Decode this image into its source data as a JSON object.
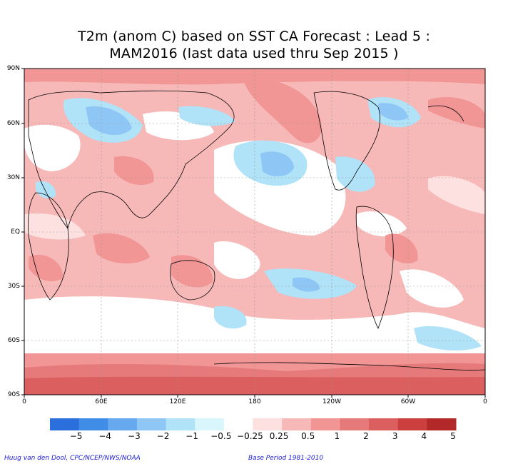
{
  "title_line1": "T2m (anom C) based on SST CA Forecast : Lead 5 :",
  "title_line2": "MAM2016 (last data used thru Sep 2015 )",
  "lat_labels": [
    "90N",
    "60N",
    "30N",
    "EQ",
    "30S",
    "60S",
    "90S"
  ],
  "lon_labels": [
    "0",
    "60E",
    "120E",
    "180",
    "120W",
    "60W",
    "0"
  ],
  "colorbar": {
    "colors": [
      "#2a6fdb",
      "#3f8de6",
      "#66a9ef",
      "#8ec6f6",
      "#b0e2f8",
      "#d8f6fb",
      "#ffffff",
      "#fde0e0",
      "#f7b8b8",
      "#f19595",
      "#e67a7a",
      "#dc5f5f",
      "#cb3f3f",
      "#b32929"
    ],
    "labels": [
      "−5",
      "−4",
      "−3",
      "−2",
      "−1",
      "−0.5",
      "−0.25",
      "0.25",
      "0.5",
      "1",
      "2",
      "3",
      "4",
      "5"
    ]
  },
  "footer_left": "Huug van den Dool, CPC/NCEP/NWS/NOAA",
  "footer_right": "Base Period 1981-2010"
}
